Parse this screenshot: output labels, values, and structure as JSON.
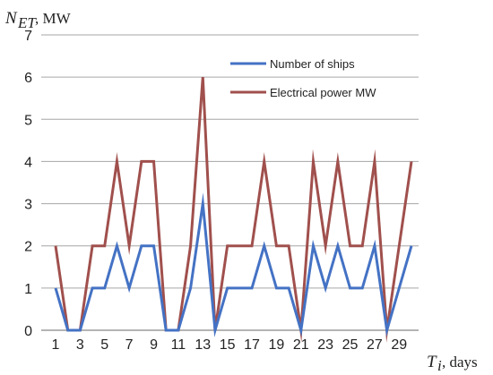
{
  "chart_data": {
    "type": "line",
    "ylabel": "N",
    "ylabel_subscript": "ET",
    "ylabel_unit": ", MW",
    "xlabel": "T",
    "xlabel_subscript": "i",
    "xlabel_unit": ", days",
    "ylim": [
      0,
      7
    ],
    "xlim": [
      1,
      30
    ],
    "yticks": [
      "0",
      "1",
      "2",
      "3",
      "4",
      "5",
      "6",
      "7"
    ],
    "xticks": [
      "1",
      "3",
      "5",
      "7",
      "9",
      "11",
      "13",
      "15",
      "17",
      "19",
      "21",
      "23",
      "25",
      "27",
      "29"
    ],
    "grid": "horizontal",
    "legend": "top-right",
    "x": [
      1,
      2,
      3,
      4,
      5,
      6,
      7,
      8,
      9,
      10,
      11,
      12,
      13,
      14,
      15,
      16,
      17,
      18,
      19,
      20,
      21,
      22,
      23,
      24,
      25,
      26,
      27,
      28,
      29,
      30
    ],
    "series": [
      {
        "name": "Number of ships",
        "color": "#4472c4",
        "values": [
          1,
          0,
          0,
          1,
          1,
          2,
          1,
          2,
          2,
          0,
          0,
          1,
          3,
          0,
          1,
          1,
          1,
          2,
          1,
          1,
          0,
          2,
          1,
          2,
          1,
          1,
          2,
          0,
          1,
          2
        ]
      },
      {
        "name": "Electrical power MW",
        "color": "#a0504d",
        "values": [
          2,
          0,
          0,
          2,
          2,
          4,
          2,
          4,
          4,
          0,
          0,
          2,
          6,
          0,
          2,
          2,
          2,
          4,
          2,
          2,
          0,
          4,
          2,
          4,
          2,
          2,
          4,
          0,
          2,
          4
        ]
      }
    ]
  }
}
